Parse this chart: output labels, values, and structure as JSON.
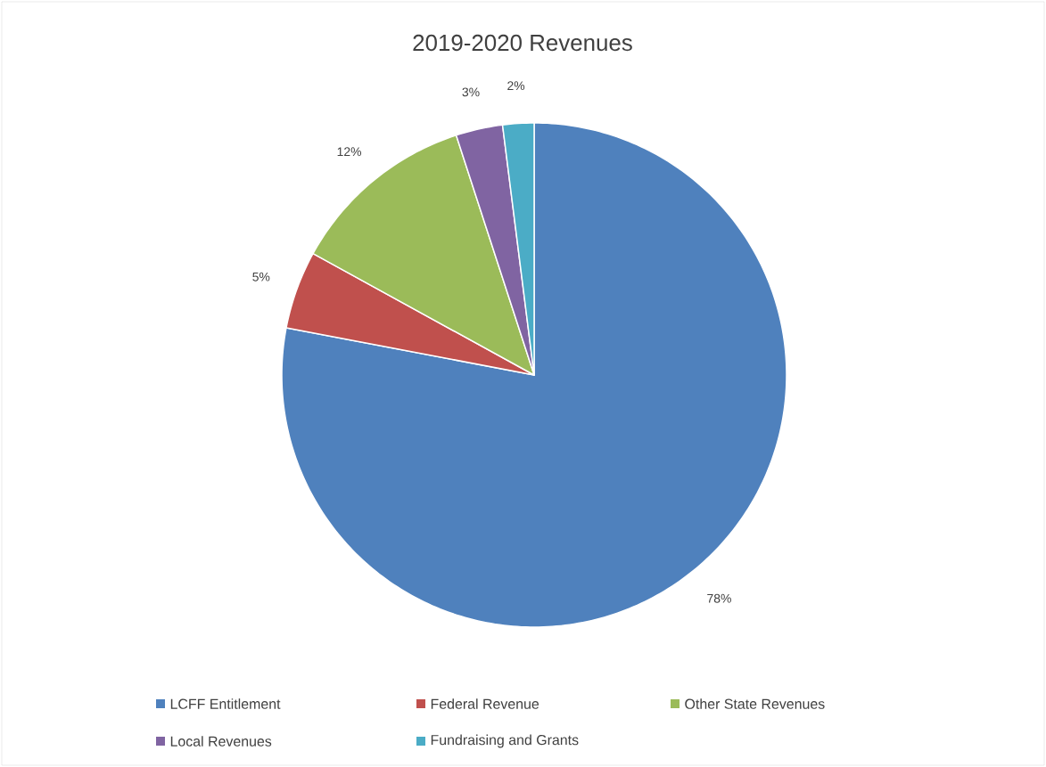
{
  "chart_data": {
    "type": "pie",
    "title": "2019-2020 Revenues",
    "categories": [
      "LCFF Entitlement",
      "Federal Revenue",
      "Other State Revenues",
      "Local Revenues",
      "Fundraising and Grants"
    ],
    "values": [
      78,
      5,
      12,
      3,
      2
    ],
    "value_labels": [
      "78%",
      "5%",
      "12%",
      "3%",
      "2%"
    ],
    "colors": [
      "#4f81bd",
      "#c0504d",
      "#9bbb59",
      "#8064a2",
      "#4bacc6"
    ],
    "legend": "bottom"
  }
}
